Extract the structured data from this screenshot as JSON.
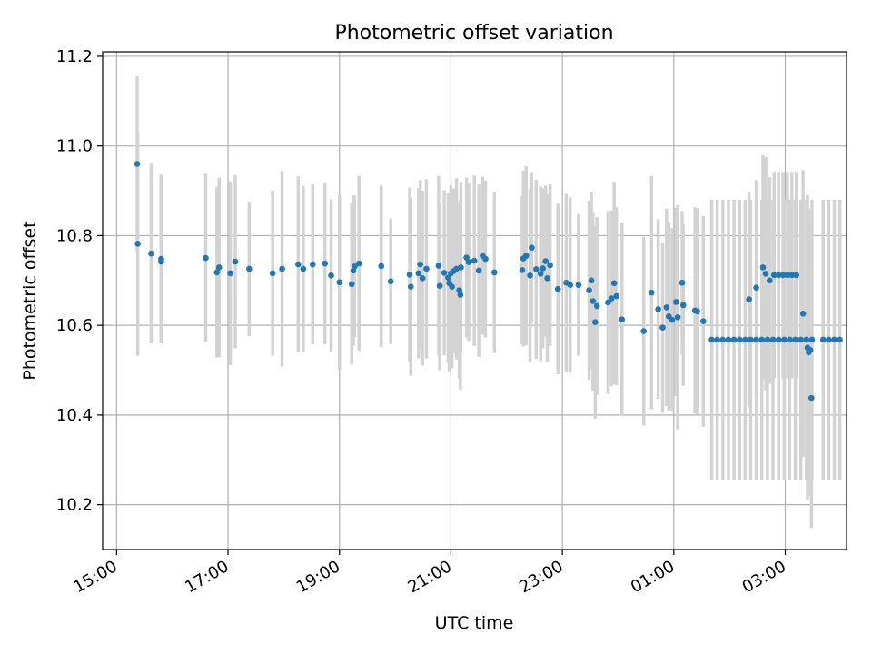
{
  "chart_data": {
    "type": "scatter",
    "title": "Photometric offset variation",
    "xlabel": "UTC time",
    "ylabel": "Photometric offset",
    "x_unit": "hours (UTC clock time; values >= 24 fall on the next day)",
    "xlim": [
      14.75,
      28.1
    ],
    "ylim": [
      10.1,
      11.21
    ],
    "x_ticks": [
      15,
      17,
      19,
      21,
      23,
      25,
      27
    ],
    "x_tick_labels": [
      "15:00",
      "17:00",
      "19:00",
      "21:00",
      "23:00",
      "01:00",
      "03:00"
    ],
    "y_ticks": [
      10.2,
      10.4,
      10.6,
      10.8,
      11.0,
      11.2
    ],
    "y_tick_labels": [
      "10.2",
      "10.4",
      "10.6",
      "10.8",
      "11.0",
      "11.2"
    ],
    "grid": true,
    "point_color": "#1f77b4",
    "errorbar_color": "#d3d3d3",
    "series": [
      {
        "points": [
          [
            15.37,
            10.96,
            0.195
          ],
          [
            15.38,
            10.782,
            0.25
          ],
          [
            15.62,
            10.76,
            0.2
          ],
          [
            15.8,
            10.748,
            0.188
          ],
          [
            15.8,
            10.742,
            0.18
          ],
          [
            16.6,
            10.75,
            0.188
          ],
          [
            16.8,
            10.718,
            0.19
          ],
          [
            16.84,
            10.729,
            0.2
          ],
          [
            17.04,
            10.716,
            0.205
          ],
          [
            17.13,
            10.742,
            0.193
          ],
          [
            17.38,
            10.726,
            0.15
          ],
          [
            17.8,
            10.716,
            0.184
          ],
          [
            17.97,
            10.726,
            0.218
          ],
          [
            18.26,
            10.736,
            0.196
          ],
          [
            18.35,
            10.726,
            0.185
          ],
          [
            18.52,
            10.736,
            0.178
          ],
          [
            18.74,
            10.738,
            0.18
          ],
          [
            18.85,
            10.711,
            0.17
          ],
          [
            19.0,
            10.696,
            0.195
          ],
          [
            19.22,
            10.692,
            0.18
          ],
          [
            19.25,
            10.722,
            0.168
          ],
          [
            19.27,
            10.731,
            0.158
          ],
          [
            19.35,
            10.738,
            0.195
          ],
          [
            19.75,
            10.732,
            0.18
          ],
          [
            19.92,
            10.698,
            0.14
          ],
          [
            20.26,
            10.713,
            0.194
          ],
          [
            20.28,
            10.686,
            0.198
          ],
          [
            20.42,
            10.716,
            0.19
          ],
          [
            20.45,
            10.736,
            0.188
          ],
          [
            20.49,
            10.705,
            0.195
          ],
          [
            20.56,
            10.726,
            0.2
          ],
          [
            20.78,
            10.733,
            0.2
          ],
          [
            20.8,
            10.688,
            0.188
          ],
          [
            20.88,
            10.717,
            0.184
          ],
          [
            20.95,
            10.706,
            0.19
          ],
          [
            20.97,
            10.694,
            0.198
          ],
          [
            21.0,
            10.716,
            0.196
          ],
          [
            21.02,
            10.686,
            0.182
          ],
          [
            21.05,
            10.721,
            0.184
          ],
          [
            21.1,
            10.726,
            0.202
          ],
          [
            21.15,
            10.678,
            0.196
          ],
          [
            21.17,
            10.668,
            0.212
          ],
          [
            21.18,
            10.729,
            0.19
          ],
          [
            21.28,
            10.751,
            0.178
          ],
          [
            21.32,
            10.741,
            0.176
          ],
          [
            21.42,
            10.744,
            0.19
          ],
          [
            21.5,
            10.722,
            0.192
          ],
          [
            21.57,
            10.755,
            0.176
          ],
          [
            21.62,
            10.748,
            0.175
          ],
          [
            21.78,
            10.718,
            0.18
          ],
          [
            22.28,
            10.723,
            0.165
          ],
          [
            22.3,
            10.749,
            0.196
          ],
          [
            22.35,
            10.755,
            0.2
          ],
          [
            22.42,
            10.711,
            0.194
          ],
          [
            22.45,
            10.773,
            0.168
          ],
          [
            22.53,
            10.725,
            0.2
          ],
          [
            22.61,
            10.715,
            0.194
          ],
          [
            22.65,
            10.727,
            0.178
          ],
          [
            22.7,
            10.743,
            0.168
          ],
          [
            22.73,
            10.705,
            0.187
          ],
          [
            22.78,
            10.734,
            0.18
          ],
          [
            22.92,
            10.681,
            0.19
          ],
          [
            23.07,
            10.695,
            0.198
          ],
          [
            23.14,
            10.69,
            0.195
          ],
          [
            23.29,
            10.69,
            0.158
          ],
          [
            23.48,
            10.678,
            0.2
          ],
          [
            23.52,
            10.7,
            0.198
          ],
          [
            23.55,
            10.654,
            0.2
          ],
          [
            23.59,
            10.607,
            0.215
          ],
          [
            23.62,
            10.643,
            0.198
          ],
          [
            23.82,
            10.651,
            0.204
          ],
          [
            23.88,
            10.66,
            0.196
          ],
          [
            23.93,
            10.694,
            0.226
          ],
          [
            23.97,
            10.665,
            0.198
          ],
          [
            24.07,
            10.613,
            0.216
          ],
          [
            24.46,
            10.587,
            0.21
          ],
          [
            24.6,
            10.673,
            0.26
          ],
          [
            24.72,
            10.636,
            0.2
          ],
          [
            24.8,
            10.595,
            0.19
          ],
          [
            24.87,
            10.64,
            0.22
          ],
          [
            24.91,
            10.62,
            0.21
          ],
          [
            24.97,
            10.612,
            0.205
          ],
          [
            25.04,
            10.652,
            0.21
          ],
          [
            25.07,
            10.618,
            0.25
          ],
          [
            25.15,
            10.695,
            0.16
          ],
          [
            25.17,
            10.645,
            0.18
          ],
          [
            25.38,
            10.633,
            0.23
          ],
          [
            25.42,
            10.631,
            0.23
          ],
          [
            25.53,
            10.609,
            0.235
          ],
          [
            25.68,
            10.568,
            0.312
          ],
          [
            25.78,
            10.568,
            0.312
          ],
          [
            25.88,
            10.568,
            0.312
          ],
          [
            25.98,
            10.568,
            0.312
          ],
          [
            26.08,
            10.568,
            0.312
          ],
          [
            26.18,
            10.568,
            0.312
          ],
          [
            26.28,
            10.568,
            0.312
          ],
          [
            26.38,
            10.568,
            0.312
          ],
          [
            26.48,
            10.568,
            0.312
          ],
          [
            26.58,
            10.568,
            0.312
          ],
          [
            26.68,
            10.568,
            0.312
          ],
          [
            26.78,
            10.568,
            0.312
          ],
          [
            26.88,
            10.568,
            0.312
          ],
          [
            26.98,
            10.568,
            0.312
          ],
          [
            27.08,
            10.568,
            0.312
          ],
          [
            27.18,
            10.568,
            0.312
          ],
          [
            27.28,
            10.568,
            0.312
          ],
          [
            27.38,
            10.568,
            0.312
          ],
          [
            27.48,
            10.568,
            0.312
          ],
          [
            27.68,
            10.568,
            0.312
          ],
          [
            27.78,
            10.568,
            0.312
          ],
          [
            27.88,
            10.568,
            0.312
          ],
          [
            27.98,
            10.568,
            0.312
          ],
          [
            26.35,
            10.658,
            0.24
          ],
          [
            26.48,
            10.684,
            0.24
          ],
          [
            26.6,
            10.729,
            0.25
          ],
          [
            26.65,
            10.715,
            0.26
          ],
          [
            26.72,
            10.7,
            0.23
          ],
          [
            26.8,
            10.712,
            0.23
          ],
          [
            26.88,
            10.712,
            0.23
          ],
          [
            26.96,
            10.712,
            0.23
          ],
          [
            27.04,
            10.712,
            0.23
          ],
          [
            27.12,
            10.712,
            0.23
          ],
          [
            27.2,
            10.712,
            0.23
          ],
          [
            27.32,
            10.626,
            0.32
          ],
          [
            27.4,
            10.55,
            0.34
          ],
          [
            27.42,
            10.54,
            0.32
          ],
          [
            27.45,
            10.545,
            0.28
          ],
          [
            27.47,
            10.438,
            0.29
          ]
        ]
      }
    ]
  }
}
